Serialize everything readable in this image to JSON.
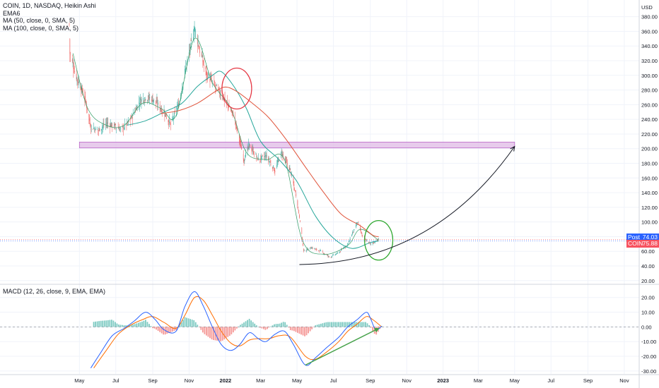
{
  "legend": {
    "title": "COIN, 1D, NASDAQ, Heikin Ashi",
    "lines": [
      "EMA6",
      "MA (50, close, 0, SMA, 5)",
      "MA (100, close, 0, SMA, 5)"
    ]
  },
  "macd_legend": "MACD (12, 26, close, 9, EMA, EMA)",
  "price_badges": [
    {
      "name": "Post",
      "value": "74.03",
      "price": 74.03,
      "color": "#2962ff"
    },
    {
      "name": "COIN",
      "value": "75.88",
      "price": 75.88,
      "color": "#f7525f"
    }
  ],
  "colors": {
    "up": "#26a69a",
    "down": "#ef5350",
    "ema": "#2e9b62",
    "ma50": "#26a69a",
    "ma100": "#e0533a",
    "macd": "#2962ff",
    "signal": "#ff6d00",
    "zone": "#e1bee7",
    "zone_border": "#ba68c8",
    "circle_red": "#e53945",
    "circle_green": "#2fa82f",
    "arrow": "#131722",
    "trend": "#43a047"
  },
  "chart_data": [
    {
      "type": "candlestick",
      "title": "COIN, 1D, NASDAQ, Heikin Ashi",
      "currency": "USD",
      "x_ticks": [
        "May",
        "Jul",
        "Sep",
        "Nov",
        "2022",
        "Mar",
        "May",
        "Jul",
        "Sep",
        "Nov",
        "2023",
        "Mar",
        "May",
        "Jul",
        "Sep",
        "Nov"
      ],
      "x_start": "2021-04-14",
      "x_end": "2023-11-26",
      "y_ticks": [
        "20.00",
        "40.00",
        "60.00",
        "80.00",
        "100.00",
        "120.00",
        "140.00",
        "160.00",
        "180.00",
        "200.00",
        "220.00",
        "240.00",
        "260.00",
        "280.00",
        "300.00",
        "320.00",
        "340.00",
        "360.00",
        "380.00"
      ],
      "ylim": [
        15,
        397
      ],
      "price_path": [
        [
          "2021-04-14",
          370
        ],
        [
          "2021-04-15",
          330
        ],
        [
          "2021-04-25",
          300
        ],
        [
          "2021-05-10",
          270
        ],
        [
          "2021-05-20",
          230
        ],
        [
          "2021-06-01",
          225
        ],
        [
          "2021-06-15",
          235
        ],
        [
          "2021-07-01",
          230
        ],
        [
          "2021-07-10",
          226
        ],
        [
          "2021-07-25",
          238
        ],
        [
          "2021-08-10",
          265
        ],
        [
          "2021-08-20",
          270
        ],
        [
          "2021-09-01",
          268
        ],
        [
          "2021-09-20",
          250
        ],
        [
          "2021-10-01",
          232
        ],
        [
          "2021-10-15",
          262
        ],
        [
          "2021-10-25",
          305
        ],
        [
          "2021-11-05",
          345
        ],
        [
          "2021-11-10",
          365
        ],
        [
          "2021-11-20",
          330
        ],
        [
          "2021-12-01",
          300
        ],
        [
          "2021-12-15",
          285
        ],
        [
          "2022-01-01",
          265
        ],
        [
          "2022-01-15",
          245
        ],
        [
          "2022-01-25",
          210
        ],
        [
          "2022-02-01",
          185
        ],
        [
          "2022-02-10",
          205
        ],
        [
          "2022-02-25",
          185
        ],
        [
          "2022-03-10",
          190
        ],
        [
          "2022-03-25",
          170
        ],
        [
          "2022-04-05",
          195
        ],
        [
          "2022-04-20",
          170
        ],
        [
          "2022-05-01",
          130
        ],
        [
          "2022-05-08",
          90
        ],
        [
          "2022-05-12",
          60
        ],
        [
          "2022-05-25",
          65
        ],
        [
          "2022-06-10",
          60
        ],
        [
          "2022-06-25",
          52
        ],
        [
          "2022-07-10",
          58
        ],
        [
          "2022-07-25",
          70
        ],
        [
          "2022-08-05",
          90
        ],
        [
          "2022-08-10",
          100
        ],
        [
          "2022-08-20",
          78
        ],
        [
          "2022-09-01",
          70
        ],
        [
          "2022-09-15",
          75.88
        ]
      ],
      "series": [
        {
          "name": "EMA6",
          "values": [
            [
              "2021-04-20",
              330
            ],
            [
              "2021-05-15",
              255
            ],
            [
              "2021-06-15",
              232
            ],
            [
              "2021-07-15",
              232
            ],
            [
              "2021-08-15",
              262
            ],
            [
              "2021-09-15",
              255
            ],
            [
              "2021-10-10",
              245
            ],
            [
              "2021-11-10",
              350
            ],
            [
              "2021-12-10",
              290
            ],
            [
              "2022-01-10",
              255
            ],
            [
              "2022-02-05",
              195
            ],
            [
              "2022-03-10",
              185
            ],
            [
              "2022-04-10",
              185
            ],
            [
              "2022-05-10",
              75
            ],
            [
              "2022-06-15",
              56
            ],
            [
              "2022-07-25",
              68
            ],
            [
              "2022-08-15",
              90
            ],
            [
              "2022-09-15",
              75
            ]
          ]
        },
        {
          "name": "MA (50, close, 0, SMA, 5)",
          "values": [
            [
              "2021-07-20",
              232
            ],
            [
              "2021-08-20",
              238
            ],
            [
              "2021-09-20",
              250
            ],
            [
              "2021-10-20",
              262
            ],
            [
              "2021-11-15",
              285
            ],
            [
              "2021-12-10",
              300
            ],
            [
              "2021-12-25",
              305
            ],
            [
              "2022-01-15",
              285
            ],
            [
              "2022-02-05",
              255
            ],
            [
              "2022-03-01",
              210
            ],
            [
              "2022-04-01",
              185
            ],
            [
              "2022-05-01",
              155
            ],
            [
              "2022-06-01",
              108
            ],
            [
              "2022-07-01",
              78
            ],
            [
              "2022-08-01",
              64
            ],
            [
              "2022-09-01",
              72
            ],
            [
              "2022-09-15",
              74
            ]
          ]
        },
        {
          "name": "MA (100, close, 0, SMA, 5)",
          "values": [
            [
              "2021-09-15",
              248
            ],
            [
              "2021-10-15",
              252
            ],
            [
              "2021-11-15",
              262
            ],
            [
              "2021-12-15",
              278
            ],
            [
              "2022-01-01",
              284
            ],
            [
              "2022-01-20",
              278
            ],
            [
              "2022-02-15",
              262
            ],
            [
              "2022-03-15",
              242
            ],
            [
              "2022-04-15",
              210
            ],
            [
              "2022-05-15",
              175
            ],
            [
              "2022-06-15",
              140
            ],
            [
              "2022-07-15",
              110
            ],
            [
              "2022-08-15",
              95
            ],
            [
              "2022-09-05",
              82
            ],
            [
              "2022-09-15",
              80
            ]
          ]
        }
      ],
      "annotations": [
        {
          "type": "zone",
          "x": [
            "2021-05-01",
            "2023-05-01"
          ],
          "y": [
            201,
            209
          ]
        },
        {
          "type": "circle",
          "color": "red",
          "center": [
            "2022-01-20",
            282
          ]
        },
        {
          "type": "circle",
          "color": "green",
          "center": [
            "2022-09-15",
            75
          ]
        },
        {
          "type": "curve-arrow",
          "from": [
            "2022-05-05",
            42
          ],
          "to": [
            "2023-05-01",
            203
          ]
        }
      ]
    },
    {
      "type": "line",
      "title": "MACD (12, 26, close, 9, EMA, EMA)",
      "y_ticks": [
        "20.00",
        "10.00",
        "0.00",
        "-10.00",
        "-20.00",
        "-30.00"
      ],
      "ylim": [
        -32,
        29
      ],
      "series": [
        {
          "name": "MACD",
          "values": [
            [
              "2021-05-20",
              -28
            ],
            [
              "2021-06-05",
              -18
            ],
            [
              "2021-06-25",
              -6
            ],
            [
              "2021-07-15",
              -1
            ],
            [
              "2021-08-01",
              4
            ],
            [
              "2021-08-20",
              10
            ],
            [
              "2021-09-05",
              5
            ],
            [
              "2021-09-20",
              -2
            ],
            [
              "2021-10-10",
              -3
            ],
            [
              "2021-10-25",
              14
            ],
            [
              "2021-11-10",
              24
            ],
            [
              "2021-11-25",
              14
            ],
            [
              "2021-12-10",
              0
            ],
            [
              "2021-12-25",
              -12
            ],
            [
              "2022-01-10",
              -16
            ],
            [
              "2022-01-25",
              -12
            ],
            [
              "2022-02-10",
              -4
            ],
            [
              "2022-02-25",
              -8
            ],
            [
              "2022-03-10",
              -10
            ],
            [
              "2022-03-25",
              -5
            ],
            [
              "2022-04-10",
              -3
            ],
            [
              "2022-04-25",
              -12
            ],
            [
              "2022-05-15",
              -26
            ],
            [
              "2022-06-01",
              -21
            ],
            [
              "2022-06-20",
              -14
            ],
            [
              "2022-07-10",
              -7
            ],
            [
              "2022-07-25",
              0
            ],
            [
              "2022-08-10",
              5
            ],
            [
              "2022-08-25",
              10
            ],
            [
              "2022-09-01",
              6
            ],
            [
              "2022-09-10",
              -2
            ],
            [
              "2022-09-20",
              0.5
            ]
          ]
        },
        {
          "name": "Signal",
          "values": [
            [
              "2021-05-25",
              -28
            ],
            [
              "2021-06-15",
              -16
            ],
            [
              "2021-07-05",
              -5
            ],
            [
              "2021-07-25",
              1
            ],
            [
              "2021-08-15",
              5
            ],
            [
              "2021-09-01",
              7
            ],
            [
              "2021-09-20",
              3
            ],
            [
              "2021-10-10",
              -1
            ],
            [
              "2021-10-25",
              8
            ],
            [
              "2021-11-10",
              20
            ],
            [
              "2021-11-25",
              18
            ],
            [
              "2021-12-10",
              8
            ],
            [
              "2021-12-25",
              -3
            ],
            [
              "2022-01-10",
              -11
            ],
            [
              "2022-01-25",
              -13
            ],
            [
              "2022-02-10",
              -9
            ],
            [
              "2022-02-25",
              -8
            ],
            [
              "2022-03-15",
              -8
            ],
            [
              "2022-04-01",
              -6
            ],
            [
              "2022-04-20",
              -7
            ],
            [
              "2022-05-15",
              -20
            ],
            [
              "2022-06-01",
              -22
            ],
            [
              "2022-06-20",
              -17
            ],
            [
              "2022-07-10",
              -10
            ],
            [
              "2022-07-25",
              -3
            ],
            [
              "2022-08-10",
              2
            ],
            [
              "2022-08-25",
              7
            ],
            [
              "2022-09-05",
              5
            ],
            [
              "2022-09-20",
              0
            ]
          ]
        }
      ],
      "annotations": [
        {
          "type": "trend-arrow",
          "from": [
            "2022-05-15",
            -26
          ],
          "to": [
            "2022-09-15",
            -1
          ]
        }
      ]
    }
  ]
}
